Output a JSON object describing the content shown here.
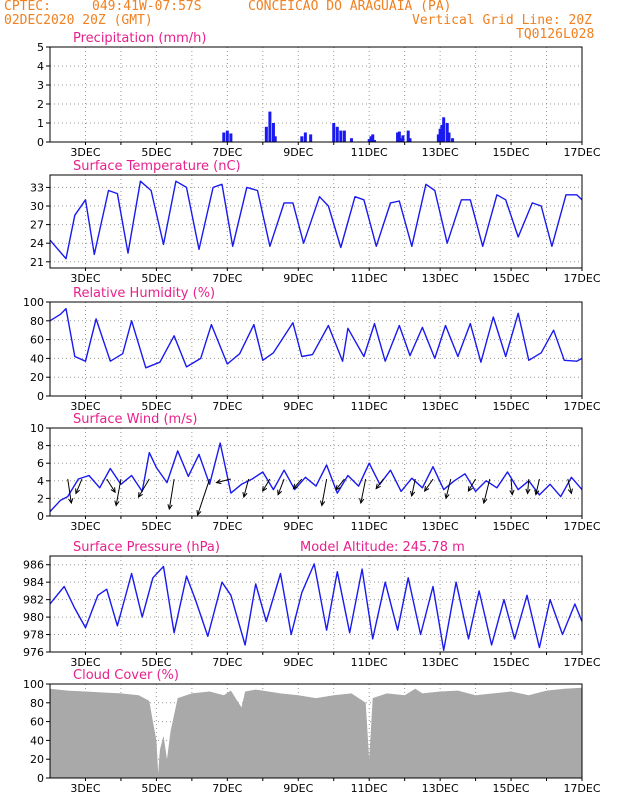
{
  "header": {
    "source": "CPTEC:",
    "coords": "049:41W-07:57S",
    "station": "CONCEICAO DO ARAGUAIA (PA)",
    "datetime": "02DEC2020 20Z (GMT)",
    "grid_note": "Vertical Grid Line: 20Z",
    "model_code": "TQ0126L028"
  },
  "chart_data": [
    {
      "type": "bar",
      "title": "Precipitation (mm/h)",
      "xticks": [
        "3DEC",
        "5DEC",
        "7DEC",
        "9DEC",
        "11DEC",
        "13DEC",
        "15DEC",
        "17DEC"
      ],
      "ylim": [
        0,
        5
      ],
      "yticks": [
        0,
        1,
        2,
        3,
        4,
        5
      ],
      "x": [
        6.9,
        7.0,
        7.1,
        8.1,
        8.2,
        8.3,
        8.35,
        9.1,
        9.2,
        9.35,
        10.0,
        10.1,
        10.2,
        10.3,
        10.5,
        11.0,
        11.05,
        11.1,
        11.15,
        11.8,
        11.85,
        11.9,
        11.95,
        12.1,
        12.15,
        12.95,
        13.0,
        13.05,
        13.1,
        13.2,
        13.25,
        13.35
      ],
      "values": [
        0.5,
        0.6,
        0.45,
        0.8,
        1.6,
        1.0,
        0.3,
        0.3,
        0.5,
        0.4,
        1.0,
        0.8,
        0.6,
        0.6,
        0.2,
        0.15,
        0.3,
        0.4,
        0.1,
        0.5,
        0.55,
        0.2,
        0.35,
        0.6,
        0.2,
        0.4,
        0.7,
        0.9,
        1.3,
        1.0,
        0.5,
        0.2
      ],
      "color": "#1a1af0",
      "grid": true
    },
    {
      "type": "line",
      "title": "Surface Temperature (nC)",
      "xticks": [
        "3DEC",
        "5DEC",
        "7DEC",
        "9DEC",
        "11DEC",
        "13DEC",
        "15DEC",
        "17DEC"
      ],
      "ylim": [
        20,
        35
      ],
      "yticks": [
        21,
        24,
        27,
        30,
        33
      ],
      "x": [
        2.0,
        2.45,
        2.7,
        3.0,
        3.25,
        3.65,
        3.9,
        4.2,
        4.55,
        4.85,
        5.2,
        5.55,
        5.85,
        6.2,
        6.6,
        6.85,
        7.15,
        7.55,
        7.85,
        8.2,
        8.6,
        8.85,
        9.15,
        9.6,
        9.85,
        10.2,
        10.6,
        10.85,
        11.2,
        11.6,
        11.85,
        12.2,
        12.6,
        12.85,
        13.2,
        13.6,
        13.85,
        14.2,
        14.6,
        14.85,
        15.2,
        15.6,
        15.85,
        16.15,
        16.55,
        16.85,
        17.0
      ],
      "values": [
        24.5,
        21.5,
        28.5,
        31,
        22.2,
        32.5,
        32,
        22.4,
        34,
        32.5,
        23.8,
        34,
        33,
        23,
        33,
        33.5,
        23.5,
        33,
        32.5,
        23.5,
        30.5,
        30.5,
        24,
        31.5,
        30,
        23.3,
        31.5,
        31,
        23.5,
        30.5,
        30.8,
        23.5,
        33.5,
        32.5,
        24,
        31,
        31,
        23.5,
        31.8,
        31,
        25,
        30.5,
        30,
        23.5,
        31.8,
        31.8,
        31
      ],
      "color": "#1a1af0",
      "grid": true
    },
    {
      "type": "line",
      "title": "Relative Humidity (%)",
      "xticks": [
        "3DEC",
        "5DEC",
        "7DEC",
        "9DEC",
        "11DEC",
        "13DEC",
        "15DEC",
        "17DEC"
      ],
      "ylim": [
        0,
        100
      ],
      "yticks": [
        0,
        20,
        40,
        60,
        80,
        100
      ],
      "x": [
        2.0,
        2.3,
        2.45,
        2.7,
        3.0,
        3.3,
        3.7,
        4.05,
        4.3,
        4.7,
        5.1,
        5.5,
        5.85,
        6.25,
        6.55,
        7.0,
        7.35,
        7.75,
        8.0,
        8.3,
        8.85,
        9.1,
        9.4,
        9.85,
        10.25,
        10.4,
        10.85,
        11.15,
        11.45,
        11.85,
        12.15,
        12.5,
        12.85,
        13.15,
        13.5,
        13.85,
        14.15,
        14.5,
        14.85,
        15.2,
        15.5,
        15.85,
        16.2,
        16.5,
        16.85,
        17.0
      ],
      "values": [
        80,
        87,
        93,
        42,
        37,
        82,
        37,
        45,
        80,
        30,
        36,
        64,
        31,
        40,
        76,
        34,
        45,
        76,
        38,
        46,
        78,
        42,
        44,
        75,
        37,
        72,
        42,
        77,
        37,
        75,
        43,
        73,
        40,
        75,
        42,
        77,
        36,
        84,
        42,
        88,
        38,
        46,
        70,
        38,
        37,
        40
      ],
      "color": "#1a1af0",
      "grid": true
    },
    {
      "type": "line",
      "title": "Surface Wind (m/s)",
      "xticks": [
        "3DEC",
        "5DEC",
        "7DEC",
        "9DEC",
        "11DEC",
        "13DEC",
        "15DEC",
        "17DEC"
      ],
      "ylim": [
        0,
        10
      ],
      "yticks": [
        0,
        2,
        4,
        6,
        8,
        10
      ],
      "x": [
        2.0,
        2.3,
        2.5,
        2.8,
        3.1,
        3.4,
        3.7,
        4.0,
        4.3,
        4.6,
        4.8,
        5.0,
        5.3,
        5.6,
        5.9,
        6.2,
        6.5,
        6.8,
        7.1,
        7.4,
        7.7,
        8.0,
        8.3,
        8.6,
        8.9,
        9.2,
        9.5,
        9.8,
        10.1,
        10.4,
        10.7,
        11.0,
        11.3,
        11.6,
        11.9,
        12.2,
        12.5,
        12.8,
        13.1,
        13.4,
        13.7,
        14.0,
        14.3,
        14.6,
        14.9,
        15.2,
        15.5,
        15.8,
        16.1,
        16.4,
        16.7,
        17.0
      ],
      "values": [
        0.5,
        1.8,
        2.2,
        4.2,
        4.6,
        3.2,
        5.4,
        3.6,
        4.6,
        2.8,
        7.2,
        5.5,
        3.8,
        7.4,
        4.5,
        7.0,
        3.6,
        8.3,
        2.6,
        3.6,
        4.2,
        5.0,
        3.0,
        5.2,
        3.0,
        4.4,
        3.4,
        5.8,
        2.6,
        4.6,
        3.4,
        6.0,
        3.6,
        5.2,
        2.8,
        4.3,
        3.2,
        5.6,
        3.0,
        4.0,
        4.8,
        2.8,
        4.0,
        3.2,
        5.0,
        3.0,
        4.0,
        2.4,
        3.6,
        2.2,
        4.4,
        3.0
      ],
      "wind_vectors": [
        [
          2.5,
          0.3,
          2.0
        ],
        [
          2.9,
          -0.5,
          1.2
        ],
        [
          3.6,
          0.7,
          1.1
        ],
        [
          4.0,
          -0.4,
          2.2
        ],
        [
          4.8,
          -0.9,
          1.5
        ],
        [
          5.5,
          -0.4,
          2.5
        ],
        [
          6.5,
          -1.0,
          3.0
        ],
        [
          7.1,
          -1.2,
          0.3
        ],
        [
          7.6,
          -0.4,
          1.5
        ],
        [
          8.2,
          -0.6,
          1.0
        ],
        [
          8.6,
          -0.5,
          1.3
        ],
        [
          9.1,
          -0.7,
          0.8
        ],
        [
          9.8,
          -0.4,
          2.2
        ],
        [
          10.3,
          -0.7,
          0.9
        ],
        [
          10.9,
          -0.4,
          2.0
        ],
        [
          11.4,
          -0.6,
          0.8
        ],
        [
          12.3,
          -0.3,
          1.4
        ],
        [
          12.8,
          -0.7,
          1.0
        ],
        [
          13.3,
          -0.4,
          1.6
        ],
        [
          14.0,
          -0.6,
          1.0
        ],
        [
          14.4,
          -0.5,
          2.0
        ],
        [
          15.0,
          0.1,
          1.3
        ],
        [
          15.5,
          -0.1,
          1.2
        ],
        [
          15.8,
          -0.3,
          1.3
        ],
        [
          16.6,
          0.3,
          1.2
        ]
      ],
      "color": "#1a1af0",
      "grid": true
    },
    {
      "type": "line",
      "title": "Surface Pressure (hPa)",
      "annotation": "Model Altitude: 245.78 m",
      "xticks": [
        "3DEC",
        "5DEC",
        "7DEC",
        "9DEC",
        "11DEC",
        "13DEC",
        "15DEC",
        "17DEC"
      ],
      "ylim": [
        976,
        987
      ],
      "yticks": [
        976,
        978,
        980,
        982,
        984,
        986
      ],
      "x": [
        2.0,
        2.1,
        2.4,
        2.7,
        3.0,
        3.35,
        3.6,
        3.9,
        4.3,
        4.6,
        4.9,
        5.2,
        5.5,
        5.85,
        6.1,
        6.45,
        6.85,
        7.1,
        7.5,
        7.8,
        8.1,
        8.5,
        8.8,
        9.1,
        9.45,
        9.8,
        10.1,
        10.45,
        10.8,
        11.1,
        11.45,
        11.8,
        12.1,
        12.45,
        12.8,
        13.1,
        13.45,
        13.8,
        14.1,
        14.45,
        14.8,
        15.1,
        15.45,
        15.8,
        16.1,
        16.45,
        16.8,
        17.0
      ],
      "values": [
        981.5,
        982,
        983.5,
        981,
        978.8,
        982.5,
        983.2,
        979,
        985,
        980,
        984.5,
        985.8,
        978.2,
        984.7,
        982,
        977.8,
        984,
        982.5,
        976.8,
        983.8,
        979.5,
        985,
        978,
        982.8,
        986.1,
        978.5,
        985.2,
        978.2,
        985.5,
        977.5,
        984,
        978.5,
        984.5,
        978,
        983.5,
        976.2,
        984,
        977.5,
        983,
        976.8,
        982,
        977.5,
        982.5,
        976.5,
        982,
        978,
        981.5,
        979.5
      ],
      "color": "#1a1af0",
      "grid": true
    },
    {
      "type": "area",
      "title": "Cloud Cover (%)",
      "xticks": [
        "3DEC",
        "5DEC",
        "7DEC",
        "9DEC",
        "11DEC",
        "13DEC",
        "15DEC",
        "17DEC"
      ],
      "ylim": [
        0,
        100
      ],
      "yticks": [
        0,
        20,
        40,
        60,
        80,
        100
      ],
      "x": [
        2.0,
        2.5,
        3.0,
        3.5,
        4.0,
        4.5,
        4.8,
        4.9,
        5.0,
        5.05,
        5.1,
        5.2,
        5.3,
        5.4,
        5.6,
        6.0,
        6.5,
        6.9,
        7.1,
        7.4,
        7.5,
        7.8,
        8.0,
        8.5,
        9.0,
        9.5,
        10.0,
        10.5,
        10.9,
        11.0,
        11.1,
        11.5,
        12.0,
        12.3,
        12.5,
        13.0,
        13.5,
        14.0,
        14.5,
        15.0,
        15.5,
        16.0,
        16.5,
        17.0
      ],
      "values": [
        95,
        93,
        92,
        91,
        90,
        88,
        82,
        60,
        40,
        5,
        30,
        45,
        20,
        50,
        85,
        90,
        92,
        88,
        93,
        75,
        92,
        94,
        93,
        90,
        88,
        85,
        88,
        90,
        80,
        20,
        85,
        90,
        88,
        95,
        90,
        92,
        93,
        88,
        90,
        92,
        88,
        93,
        95,
        96
      ],
      "color": "#a9a9a9",
      "grid": true
    }
  ]
}
